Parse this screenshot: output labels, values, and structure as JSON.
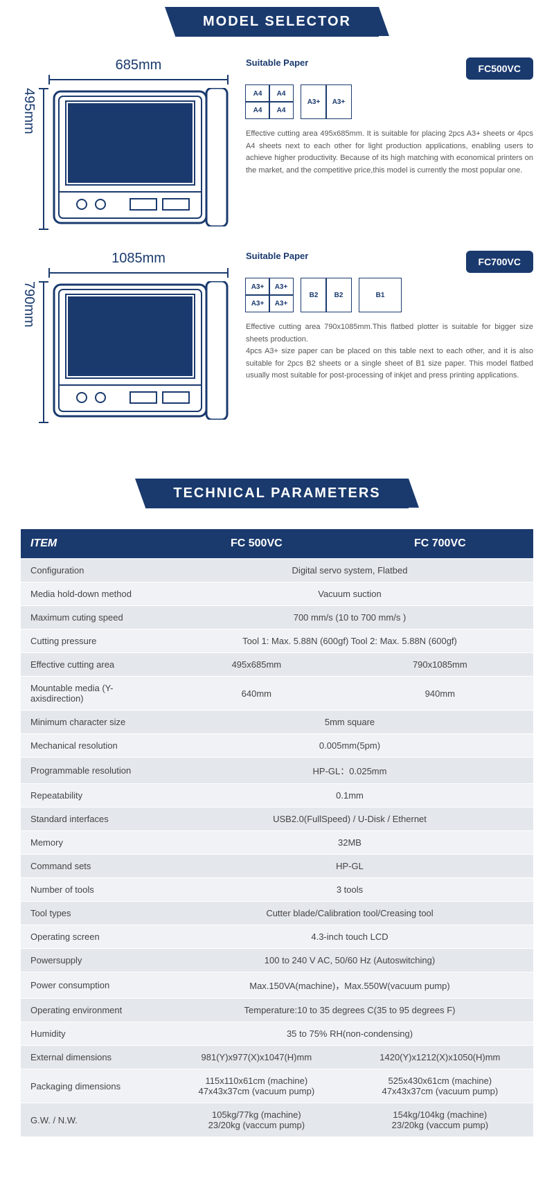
{
  "colors": {
    "primary": "#1a3a6e",
    "text": "#555",
    "row_even": "#f0f2f5",
    "row_odd": "#e4e7ec"
  },
  "banners": {
    "model_selector": "MODEL SELECTOR",
    "tech_params": "TECHNICAL PARAMETERS"
  },
  "models": [
    {
      "id": "fc500vc",
      "badge": "FC500VC",
      "width": "685mm",
      "height": "495mm",
      "suitable_label": "Suitable Paper",
      "paper_groups": [
        {
          "layout": "2x2",
          "cells": [
            "A4",
            "A4",
            "A4",
            "A4"
          ]
        },
        {
          "layout": "1x2",
          "cells": [
            "A3+",
            "A3+"
          ]
        }
      ],
      "description": "Effective cutting area 495x685mm. It is suitable for placing 2pcs A3+ sheets or 4pcs A4 sheets next to each other for light production applications, enabling users to achieve higher productivity. Because of its high matching with economical printers on the market, and the competitive price,this model is currently the most popular one."
    },
    {
      "id": "fc700vc",
      "badge": "FC700VC",
      "width": "1085mm",
      "height": "790mm",
      "suitable_label": "Suitable Paper",
      "paper_groups": [
        {
          "layout": "2x2",
          "cells": [
            "A3+",
            "A3+",
            "A3+",
            "A3+"
          ]
        },
        {
          "layout": "1x2",
          "cells": [
            "B2",
            "B2"
          ]
        },
        {
          "layout": "1x1",
          "cells": [
            "B1"
          ]
        }
      ],
      "description": "Effective cutting area 790x1085mm.This flatbed plotter is suitable for bigger size sheets production.\n4pcs A3+ size paper can be placed on this table next to each other, and it is also suitable for 2pcs B2 sheets or a single sheet of B1 size paper. This model flatbed usually most suitable for post-processing of inkjet and press printing applications."
    }
  ],
  "table": {
    "headers": [
      "ITEM",
      "FC 500VC",
      "FC 700VC"
    ],
    "rows": [
      {
        "item": "Configuration",
        "merged": "Digital servo system, Flatbed"
      },
      {
        "item": "Media hold-down method",
        "merged": "Vacuum suction"
      },
      {
        "item": "Maximum cuting speed",
        "merged": "700 mm/s (10 to 700 mm/s )"
      },
      {
        "item": "Cutting pressure",
        "merged": "Tool 1: Max. 5.88N (600gf)  Tool 2: Max. 5.88N (600gf)"
      },
      {
        "item": "Effective cutting area",
        "a": "495x685mm",
        "b": "790x1085mm"
      },
      {
        "item": "Mountable media (Y-axisdirection)",
        "a": "640mm",
        "b": "940mm"
      },
      {
        "item": "Minimum character size",
        "merged": "5mm square"
      },
      {
        "item": "Mechanical resolution",
        "merged": "0.005mm(5pm)"
      },
      {
        "item": "Programmable resolution",
        "merged": "HP-GL：0.025mm"
      },
      {
        "item": "Repeatability",
        "merged": "0.1mm"
      },
      {
        "item": "Standard interfaces",
        "merged": "USB2.0(FullSpeed) / U-Disk / Ethernet"
      },
      {
        "item": "Memory",
        "merged": "32MB"
      },
      {
        "item": "Command sets",
        "merged": "HP-GL"
      },
      {
        "item": "Number of tools",
        "merged": "3 tools"
      },
      {
        "item": "Tool types",
        "merged": "Cutter blade/Calibration tool/Creasing tool"
      },
      {
        "item": "Operating screen",
        "merged": "4.3-inch touch LCD"
      },
      {
        "item": "Powersupply",
        "merged": "100 to 240 V AC,   50/60 Hz (Autoswitching)"
      },
      {
        "item": "Power consumption",
        "merged": "Max.150VA(machine)，Max.550W(vacuum pump)"
      },
      {
        "item": "Operating environment",
        "merged": "Temperature:10 to 35 degrees C(35 to 95 degrees F)"
      },
      {
        "item": "Humidity",
        "merged": "35 to 75% RH(non-condensing)"
      },
      {
        "item": "External dimensions",
        "a": "981(Y)x977(X)x1047(H)mm",
        "b": "1420(Y)x1212(X)x1050(H)mm"
      },
      {
        "item": "Packaging dimensions",
        "a": "115x110x61cm (machine)\n47x43x37cm (vacuum pump)",
        "b": "525x430x61cm (machine)\n47x43x37cm (vacuum pump)"
      },
      {
        "item": "G.W. / N.W.",
        "a": "105kg/77kg (machine)\n23/20kg (vaccum pump)",
        "b": "154kg/104kg (machine)\n23/20kg (vaccum pump)"
      }
    ]
  }
}
